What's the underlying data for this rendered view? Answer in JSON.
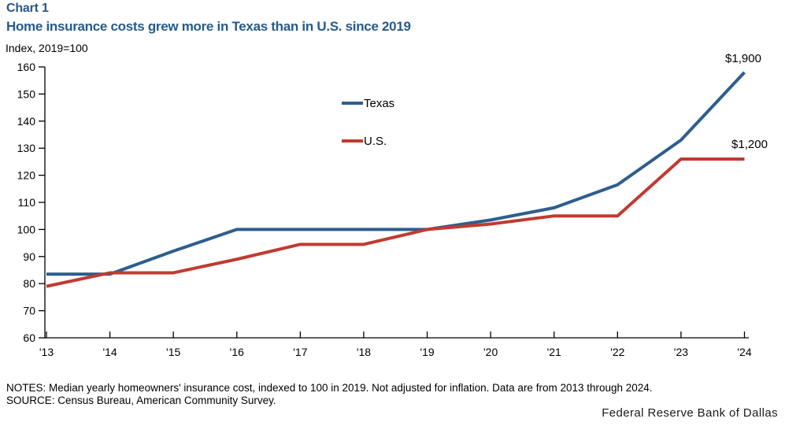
{
  "header": {
    "chart_label": "Chart 1",
    "title": "Home insurance costs grew more in Texas than in U.S. since 2019",
    "axis_unit": "Index, 2019=100"
  },
  "chart_data": {
    "type": "line",
    "x": [
      2013,
      2014,
      2015,
      2016,
      2017,
      2018,
      2019,
      2020,
      2021,
      2022,
      2023,
      2024
    ],
    "x_tick_labels": [
      "'13",
      "'14",
      "'15",
      "'16",
      "'17",
      "'18",
      "'19",
      "'20",
      "'21",
      "'22",
      "'23",
      "'24"
    ],
    "series": [
      {
        "name": "Texas",
        "color": "#2e5e8e",
        "values": [
          83.5,
          83.5,
          92,
          100,
          100,
          100,
          100,
          103.5,
          108,
          116.5,
          133,
          158
        ]
      },
      {
        "name": "U.S.",
        "color": "#c13a30",
        "values": [
          79,
          84,
          84,
          89,
          94.5,
          94.5,
          100,
          102,
          105,
          105,
          126,
          126
        ]
      }
    ],
    "ylim": [
      60,
      160
    ],
    "y_tick_step": 10,
    "grid": false,
    "legend_position": "inside-top-center-left",
    "annotations": [
      {
        "text": "$1,900",
        "series": "Texas",
        "x": 2024,
        "y": 158
      },
      {
        "text": "$1,200",
        "series": "U.S.",
        "x": 2024,
        "y": 126
      }
    ]
  },
  "footer": {
    "notes": "NOTES: Median yearly homeowners' insurance cost, indexed to 100 in 2019. Not adjusted for inflation. Data are from 2013 through 2024.",
    "source": "SOURCE: Census Bureau, American Community Survey.",
    "branding": "Federal Reserve Bank of Dallas"
  },
  "colors": {
    "title_blue": "#265a8c",
    "texas_line": "#2e5e8e",
    "us_line": "#c13a30",
    "axis": "#000000"
  }
}
